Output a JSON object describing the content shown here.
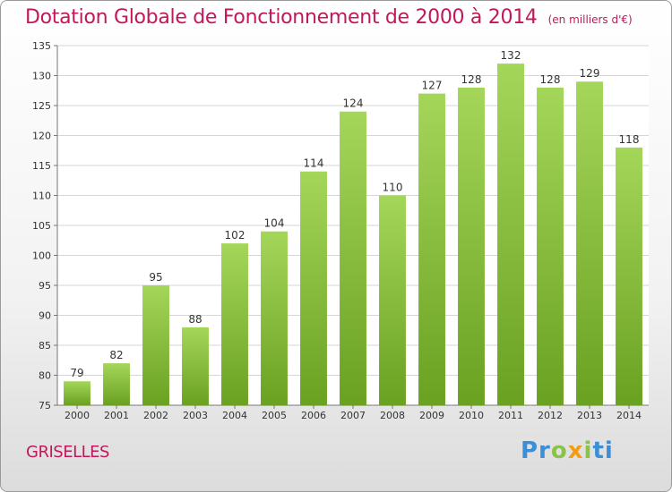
{
  "header": {
    "title": "Dotation Globale de Fonctionnement de 2000 à 2014",
    "unit": "(en milliers d'€)"
  },
  "footer": {
    "town": "GRISELLES",
    "logo_parts": [
      "Pr",
      "o",
      "x",
      "i",
      "ti"
    ]
  },
  "colors": {
    "title": "#c2185b",
    "bar_light": "#a4d65a",
    "bar_dark": "#6aa121",
    "grid": "#d6d6d6"
  },
  "chart_data": {
    "type": "bar",
    "title": "Dotation Globale de Fonctionnement de 2000 à 2014",
    "subtitle": "(en milliers d'€)",
    "xlabel": "",
    "ylabel": "",
    "categories": [
      "2000",
      "2001",
      "2002",
      "2003",
      "2004",
      "2005",
      "2006",
      "2007",
      "2008",
      "2009",
      "2010",
      "2011",
      "2012",
      "2013",
      "2014"
    ],
    "values": [
      79,
      82,
      95,
      88,
      102,
      104,
      114,
      124,
      110,
      127,
      128,
      132,
      128,
      129,
      118
    ],
    "ylim": [
      75,
      135
    ],
    "yticks": [
      75,
      80,
      85,
      90,
      95,
      100,
      105,
      110,
      115,
      120,
      125,
      130,
      135
    ],
    "grid": true,
    "legend": "none"
  }
}
